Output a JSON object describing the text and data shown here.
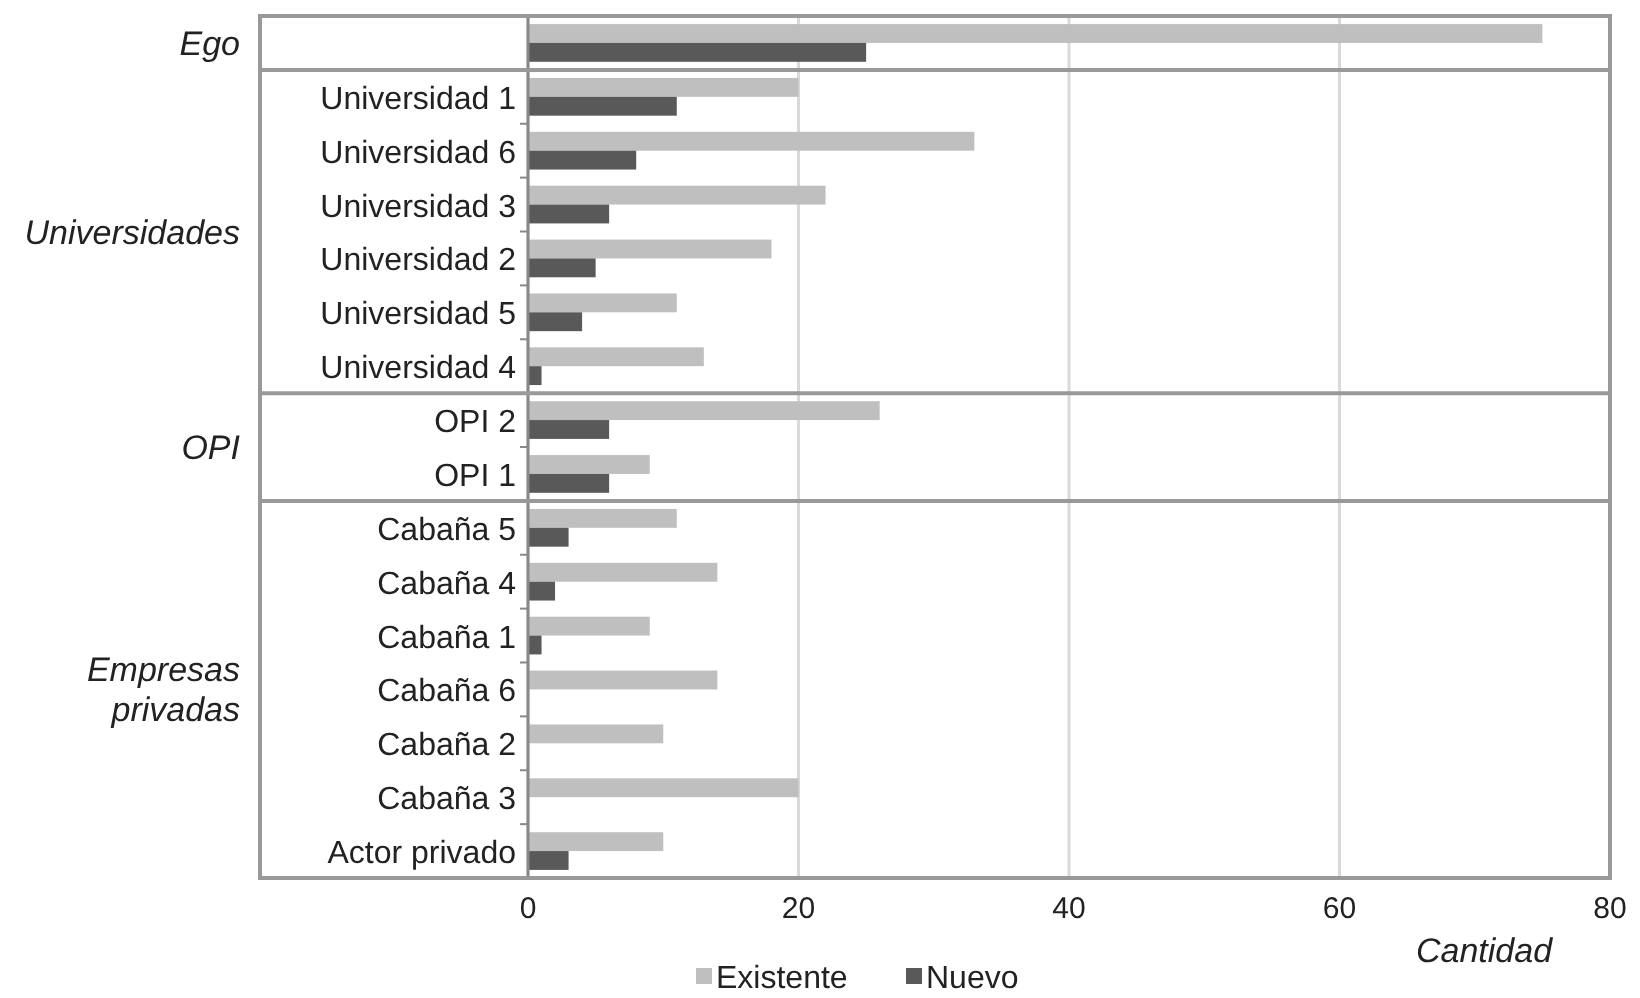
{
  "chart_data": {
    "type": "bar",
    "orientation": "horizontal",
    "xlabel": "Cantidad",
    "categories": [
      null,
      "Universidad 1",
      "Universidad 6",
      "Universidad 3",
      "Universidad 2",
      "Universidad 5",
      "Universidad 4",
      "OPI 2",
      "OPI 1",
      "Cabaña 5",
      "Cabaña 4",
      "Cabaña 1",
      "Cabaña 6",
      "Cabaña 2",
      "Cabaña 3",
      "Actor privado"
    ],
    "series": [
      {
        "name": "Existente",
        "color": "#bfbfbf",
        "values": [
          75,
          20,
          33,
          22,
          18,
          11,
          13,
          26,
          9,
          11,
          14,
          9,
          14,
          10,
          20,
          10
        ]
      },
      {
        "name": "Nuevo",
        "color": "#595959",
        "values": [
          25,
          11,
          8,
          6,
          5,
          4,
          1,
          6,
          6,
          3,
          2,
          1,
          0,
          0,
          0,
          3
        ]
      }
    ],
    "xlim": [
      0,
      80
    ],
    "xticks": [
      0,
      20,
      40,
      60,
      80
    ],
    "grid": "x",
    "legend": "bottom",
    "annotations": [
      "Ego",
      "Universidades",
      "OPI",
      "Empresas privadas"
    ]
  }
}
